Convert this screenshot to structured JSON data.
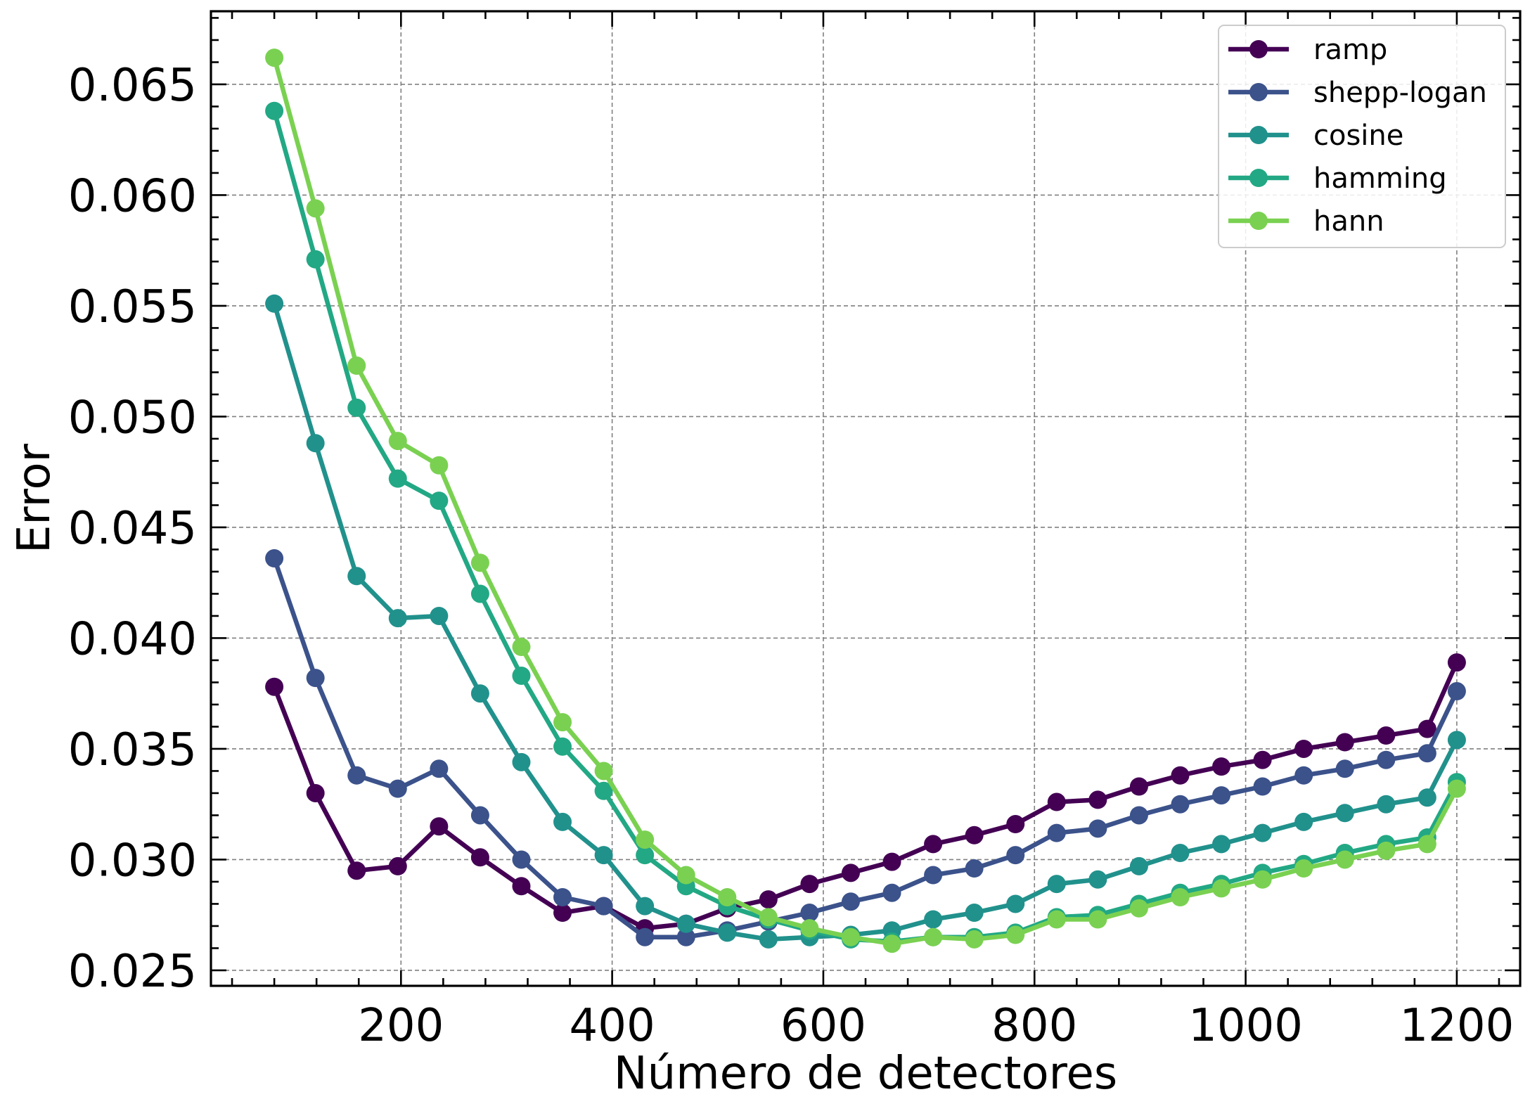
{
  "chart_data": {
    "type": "line",
    "title": "",
    "xlabel": "Número de detectores",
    "ylabel": "Error",
    "xlim": [
      20,
      1260
    ],
    "ylim": [
      0.0243,
      0.0683
    ],
    "x_ticks": [
      200,
      400,
      600,
      800,
      1000,
      1200
    ],
    "x_tick_labels": [
      "200",
      "400",
      "600",
      "800",
      "1000",
      "1200"
    ],
    "y_ticks": [
      0.025,
      0.03,
      0.035,
      0.04,
      0.045,
      0.05,
      0.055,
      0.06,
      0.065
    ],
    "y_tick_labels": [
      "0.025",
      "0.030",
      "0.035",
      "0.040",
      "0.045",
      "0.050",
      "0.055",
      "0.060",
      "0.065"
    ],
    "grid": true,
    "legend_position": "top-right",
    "x": [
      80,
      119,
      158,
      197,
      236,
      275,
      314,
      353,
      392,
      431,
      470,
      509,
      548,
      587,
      626,
      665,
      704,
      743,
      782,
      821,
      860,
      899,
      938,
      977,
      1016,
      1055,
      1094,
      1133,
      1172,
      1200
    ],
    "series": [
      {
        "name": "ramp",
        "color": "#440154",
        "values": [
          0.0378,
          0.033,
          0.0295,
          0.0297,
          0.0315,
          0.0301,
          0.0288,
          0.0276,
          0.0279,
          0.0269,
          0.0271,
          0.0278,
          0.0282,
          0.0289,
          0.0294,
          0.0299,
          0.0307,
          0.0311,
          0.0316,
          0.0326,
          0.0327,
          0.0333,
          0.0338,
          0.0342,
          0.0345,
          0.035,
          0.0353,
          0.0356,
          0.0359,
          0.0389
        ]
      },
      {
        "name": "shepp-logan",
        "color": "#3b528b",
        "values": [
          0.0436,
          0.0382,
          0.0338,
          0.0332,
          0.0341,
          0.032,
          0.03,
          0.0283,
          0.0279,
          0.0265,
          0.0265,
          0.0268,
          0.0272,
          0.0276,
          0.0281,
          0.0285,
          0.0293,
          0.0296,
          0.0302,
          0.0312,
          0.0314,
          0.032,
          0.0325,
          0.0329,
          0.0333,
          0.0338,
          0.0341,
          0.0345,
          0.0348,
          0.0376
        ]
      },
      {
        "name": "cosine",
        "color": "#21918c",
        "values": [
          0.0551,
          0.0488,
          0.0428,
          0.0409,
          0.041,
          0.0375,
          0.0344,
          0.0317,
          0.0302,
          0.0279,
          0.0271,
          0.0267,
          0.0264,
          0.0265,
          0.0266,
          0.0268,
          0.0273,
          0.0276,
          0.028,
          0.0289,
          0.0291,
          0.0297,
          0.0303,
          0.0307,
          0.0312,
          0.0317,
          0.0321,
          0.0325,
          0.0328,
          0.0354
        ]
      },
      {
        "name": "hamming",
        "color": "#22a884",
        "values": [
          0.0638,
          0.0571,
          0.0504,
          0.0472,
          0.0462,
          0.042,
          0.0383,
          0.0351,
          0.0331,
          0.0302,
          0.0288,
          0.0279,
          0.0273,
          0.0268,
          0.0264,
          0.0263,
          0.0265,
          0.0265,
          0.0267,
          0.0274,
          0.0275,
          0.028,
          0.0285,
          0.0289,
          0.0294,
          0.0298,
          0.0303,
          0.0307,
          0.031,
          0.0335
        ]
      },
      {
        "name": "hann",
        "color": "#7ad151",
        "values": [
          0.0662,
          0.0594,
          0.0523,
          0.0489,
          0.0478,
          0.0434,
          0.0396,
          0.0362,
          0.034,
          0.0309,
          0.0293,
          0.0283,
          0.0274,
          0.0269,
          0.0265,
          0.0262,
          0.0265,
          0.0264,
          0.0266,
          0.0273,
          0.0273,
          0.0278,
          0.0283,
          0.0287,
          0.0291,
          0.0296,
          0.03,
          0.0304,
          0.0307,
          0.0332
        ]
      }
    ]
  }
}
